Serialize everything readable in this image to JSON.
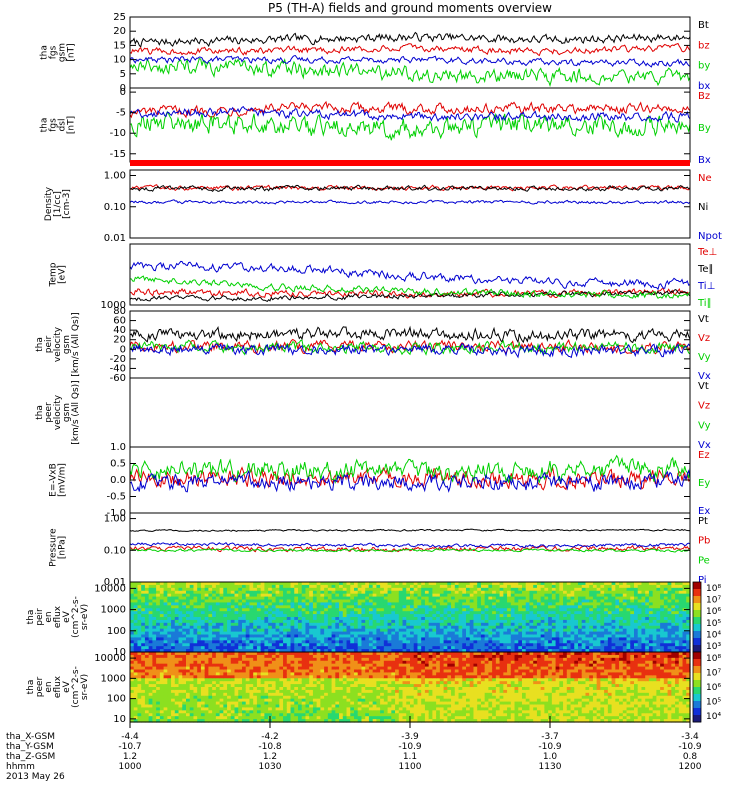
{
  "title": "P5 (TH-A) fields and ground moments overview",
  "panels": [
    {
      "id": "fgs-gsm",
      "ylabel": [
        "tha",
        "fgs",
        "gsm",
        "[nT]"
      ],
      "yscale": "linear",
      "ylim": [
        0,
        25
      ],
      "ticks": [
        {
          "v": 0,
          "t": "0"
        },
        {
          "v": 5,
          "t": "5"
        },
        {
          "v": 10,
          "t": "10"
        },
        {
          "v": 15,
          "t": "15"
        },
        {
          "v": 20,
          "t": "20"
        },
        {
          "v": 25,
          "t": "25"
        }
      ],
      "legend": [
        {
          "t": "Bt",
          "c": "#000000"
        },
        {
          "t": "bz",
          "c": "#e00000"
        },
        {
          "t": "by",
          "c": "#00d000"
        },
        {
          "t": "bx",
          "c": "#0000d0"
        }
      ]
    },
    {
      "id": "fgs-dsl",
      "ylabel": [
        "tha",
        "fgs",
        "dsl",
        "[nT]"
      ],
      "yscale": "linear",
      "ylim": [
        -17,
        1
      ],
      "ticks": [
        {
          "v": 0,
          "t": "0"
        },
        {
          "v": -5,
          "t": "-5"
        },
        {
          "v": -10,
          "t": "-10"
        },
        {
          "v": -15,
          "t": "-15"
        }
      ],
      "legend": [
        {
          "t": "Bz",
          "c": "#e00000"
        },
        {
          "t": "By",
          "c": "#00d000"
        },
        {
          "t": "Bx",
          "c": "#0000d0"
        }
      ]
    },
    {
      "id": "density",
      "ylabel": [
        "Density",
        "[1/cc]",
        "[cm-3]"
      ],
      "yscale": "log",
      "ylim": [
        0.01,
        1.5
      ],
      "ticks": [
        {
          "v": 1,
          "t": "1.00"
        },
        {
          "v": 0.1,
          "t": "0.10"
        },
        {
          "v": 0.01,
          "t": "0.01"
        }
      ],
      "legend": [
        {
          "t": "Ne",
          "c": "#e00000"
        },
        {
          "t": "Ni",
          "c": "#000000"
        },
        {
          "t": "Npot",
          "c": "#0000d0"
        }
      ]
    },
    {
      "id": "temperature",
      "ylabel": [
        "Temp",
        "[eV]"
      ],
      "yscale": "log",
      "ylim": [
        1000,
        60000
      ],
      "ticks": [
        {
          "v": 1000,
          "t": "1000"
        }
      ],
      "legend": [
        {
          "t": "Te⊥",
          "c": "#e00000"
        },
        {
          "t": "Te∥",
          "c": "#000000"
        },
        {
          "t": "Ti⊥",
          "c": "#0000d0"
        },
        {
          "t": "Ti∥",
          "c": "#00d000"
        }
      ]
    },
    {
      "id": "peir-velocity",
      "ylabel": [
        "tha",
        "peir",
        "velocity",
        "gsm",
        "[km/s (All Qs)]"
      ],
      "yscale": "linear",
      "ylim": [
        -60,
        80
      ],
      "ticks": [
        {
          "v": 80,
          "t": "80"
        },
        {
          "v": 60,
          "t": "60"
        },
        {
          "v": 40,
          "t": "40"
        },
        {
          "v": 20,
          "t": "20"
        },
        {
          "v": 0,
          "t": "0"
        },
        {
          "v": -20,
          "t": "-20"
        },
        {
          "v": -40,
          "t": "-40"
        },
        {
          "v": -60,
          "t": "-60"
        }
      ],
      "legend": [
        {
          "t": "Vt",
          "c": "#000000"
        },
        {
          "t": "Vz",
          "c": "#e00000"
        },
        {
          "t": "Vy",
          "c": "#00d000"
        },
        {
          "t": "Vx",
          "c": "#0000d0"
        }
      ]
    },
    {
      "id": "peer-velocity",
      "ylabel": [
        "tha",
        "peer",
        "velocity",
        "gsm",
        "[km/s (All Qs)]"
      ],
      "yscale": "linear",
      "ylim": [
        0,
        1
      ],
      "ticks": [],
      "legend": [
        {
          "t": "Vt",
          "c": "#000000"
        },
        {
          "t": "Vz",
          "c": "#e00000"
        },
        {
          "t": "Vy",
          "c": "#00d000"
        },
        {
          "t": "Vx",
          "c": "#0000d0"
        }
      ]
    },
    {
      "id": "efield",
      "ylabel": [
        "E=-VxB",
        "[mV/m]"
      ],
      "yscale": "linear",
      "ylim": [
        -1,
        1
      ],
      "ticks": [
        {
          "v": 1,
          "t": "1.0"
        },
        {
          "v": 0.5,
          "t": "0.5"
        },
        {
          "v": 0,
          "t": "0.0"
        },
        {
          "v": -0.5,
          "t": "-0.5"
        },
        {
          "v": -1,
          "t": "-1.0"
        }
      ],
      "legend": [
        {
          "t": "Ez",
          "c": "#e00000"
        },
        {
          "t": "Ey",
          "c": "#00d000"
        },
        {
          "t": "Ex",
          "c": "#0000d0"
        }
      ]
    },
    {
      "id": "pressure",
      "ylabel": [
        "Pressure",
        "[nPa]"
      ],
      "yscale": "log",
      "ylim": [
        0.01,
        1.5
      ],
      "ticks": [
        {
          "v": 1,
          "t": "1.00"
        },
        {
          "v": 0.1,
          "t": "0.10"
        },
        {
          "v": 0.01,
          "t": "0.01"
        }
      ],
      "legend": [
        {
          "t": "Pt",
          "c": "#000000"
        },
        {
          "t": "Pb",
          "c": "#e00000"
        },
        {
          "t": "Pe",
          "c": "#00d000"
        },
        {
          "t": "Pi",
          "c": "#0000d0"
        }
      ]
    },
    {
      "id": "peir-spec",
      "ylabel": [
        "tha",
        "peir",
        "en",
        "eflux",
        "eV",
        "(cm^2-s-",
        "sr-eV)"
      ],
      "yscale": "log",
      "ylim": [
        10,
        20000
      ],
      "ticks": [
        {
          "v": 10000,
          "t": "10000"
        },
        {
          "v": 1000,
          "t": "1000"
        },
        {
          "v": 100,
          "t": "100"
        },
        {
          "v": 10,
          "t": "10"
        }
      ],
      "colorbar": [
        "10³",
        "10⁴",
        "10⁵",
        "10⁶",
        "10⁷",
        "10⁸"
      ]
    },
    {
      "id": "peer-spec",
      "ylabel": [
        "tha",
        "peer",
        "en",
        "eflux",
        "eV",
        "(cm^2-s-",
        "sr-eV)"
      ],
      "yscale": "log",
      "ylim": [
        7,
        20000
      ],
      "ticks": [
        {
          "v": 10000,
          "t": "10000"
        },
        {
          "v": 1000,
          "t": "1000"
        },
        {
          "v": 100,
          "t": "100"
        },
        {
          "v": 10,
          "t": "10"
        }
      ],
      "colorbar": [
        "10⁴",
        "10⁵",
        "10⁶",
        "10⁷",
        "10⁸"
      ]
    }
  ],
  "xaxis": {
    "rows": [
      {
        "label": "tha_X-GSM",
        "values": [
          "-4.4",
          "-4.2",
          "-3.9",
          "-3.7",
          "-3.4"
        ]
      },
      {
        "label": "tha_Y-GSM",
        "values": [
          "-10.7",
          "-10.8",
          "-10.9",
          "-10.9",
          "-10.9"
        ]
      },
      {
        "label": "tha_Z-GSM",
        "values": [
          "1.2",
          "1.2",
          "1.1",
          "1.0",
          "0.8"
        ]
      },
      {
        "label": "hhmm",
        "values": [
          "1000",
          "1030",
          "1100",
          "1130",
          "1200"
        ]
      }
    ],
    "date": "2013 May 26",
    "time_range_minutes": [
      600,
      720
    ]
  },
  "chart_data": [
    {
      "type": "line",
      "title": "tha fgs gsm",
      "x": [
        600,
        630,
        660,
        690,
        720
      ],
      "series": [
        {
          "name": "Bt",
          "values": [
            16,
            17,
            18,
            17,
            18
          ]
        },
        {
          "name": "bz",
          "values": [
            13,
            13,
            14,
            13,
            14
          ]
        },
        {
          "name": "by",
          "values": [
            8,
            7,
            5,
            4,
            4
          ]
        },
        {
          "name": "bx",
          "values": [
            10,
            10,
            10,
            9,
            9
          ]
        }
      ]
    },
    {
      "type": "line",
      "title": "tha fgs dsl",
      "x": [
        600,
        630,
        660,
        690,
        720
      ],
      "series": [
        {
          "name": "Bz",
          "values": [
            -5,
            -4,
            -4,
            -4,
            -4
          ]
        },
        {
          "name": "By",
          "values": [
            -7,
            -8,
            -9,
            -8,
            -8
          ]
        },
        {
          "name": "Bx",
          "values": [
            -5,
            -5,
            -6,
            -6,
            -6
          ]
        }
      ]
    },
    {
      "type": "line",
      "title": "Density",
      "x": [
        600,
        630,
        660,
        690,
        720
      ],
      "series": [
        {
          "name": "Ne",
          "values": [
            0.4,
            0.4,
            0.41,
            0.4,
            0.4
          ]
        },
        {
          "name": "Ni",
          "values": [
            0.38,
            0.38,
            0.39,
            0.39,
            0.39
          ]
        },
        {
          "name": "Npot",
          "values": [
            0.14,
            0.14,
            0.14,
            0.14,
            0.14
          ]
        }
      ]
    },
    {
      "type": "line",
      "title": "Temp",
      "x": [
        600,
        630,
        660,
        690,
        720
      ],
      "series": [
        {
          "name": "Te⊥",
          "values": [
            2500,
            2200,
            2100,
            2200,
            2400
          ]
        },
        {
          "name": "Te∥",
          "values": [
            1500,
            1600,
            1800,
            2100,
            2300
          ]
        },
        {
          "name": "Ti⊥",
          "values": [
            14000,
            12000,
            7000,
            4500,
            4200
          ]
        },
        {
          "name": "Ti∥",
          "values": [
            6000,
            3500,
            2500,
            2200,
            1800
          ]
        }
      ]
    },
    {
      "type": "line",
      "title": "peir velocity gsm",
      "x": [
        600,
        630,
        660,
        690,
        720
      ],
      "series": [
        {
          "name": "Vt",
          "values": [
            32,
            30,
            34,
            30,
            28
          ]
        },
        {
          "name": "Vz",
          "values": [
            8,
            6,
            5,
            5,
            4
          ]
        },
        {
          "name": "Vy",
          "values": [
            5,
            4,
            2,
            3,
            3
          ]
        },
        {
          "name": "Vx",
          "values": [
            0,
            -2,
            0,
            -3,
            -2
          ]
        }
      ]
    },
    {
      "type": "line",
      "title": "E=-VxB",
      "x": [
        600,
        630,
        660,
        690,
        720
      ],
      "series": [
        {
          "name": "Ez",
          "values": [
            0.0,
            0.05,
            0.1,
            0.0,
            0.05
          ]
        },
        {
          "name": "Ey",
          "values": [
            0.3,
            0.3,
            0.2,
            0.3,
            0.3
          ]
        },
        {
          "name": "Ex",
          "values": [
            -0.1,
            -0.05,
            -0.1,
            -0.1,
            -0.05
          ]
        }
      ]
    },
    {
      "type": "line",
      "title": "Pressure",
      "x": [
        600,
        630,
        660,
        690,
        720
      ],
      "series": [
        {
          "name": "Pt",
          "values": [
            0.42,
            0.42,
            0.43,
            0.43,
            0.44
          ]
        },
        {
          "name": "Pb",
          "values": [
            0.12,
            0.11,
            0.11,
            0.11,
            0.12
          ]
        },
        {
          "name": "Pe",
          "values": [
            0.1,
            0.1,
            0.1,
            0.1,
            0.1
          ]
        },
        {
          "name": "Pi",
          "values": [
            0.16,
            0.15,
            0.14,
            0.14,
            0.15
          ]
        }
      ]
    },
    {
      "type": "heatmap",
      "title": "tha peir en eflux",
      "x": [
        600,
        720
      ],
      "y": [
        10,
        20000
      ],
      "color_range": [
        "10³",
        "10⁸"
      ]
    },
    {
      "type": "heatmap",
      "title": "tha peer en eflux",
      "x": [
        600,
        720
      ],
      "y": [
        7,
        20000
      ],
      "color_range": [
        "10⁴",
        "10⁸"
      ]
    }
  ]
}
